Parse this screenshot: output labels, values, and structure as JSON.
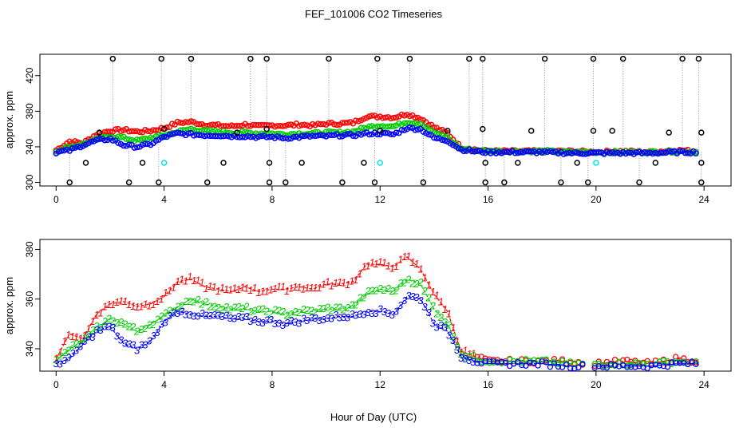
{
  "title": "FEF_101006  CO2 Timeseries",
  "xlabel": "Hour of Day (UTC)",
  "colors": {
    "series_1": "#ff0000",
    "series_2": "#00cc00",
    "series_3": "#0000ff",
    "outlier": "#000000",
    "cyan": "#00e5ee",
    "dotted_line": "#888888"
  },
  "chart_data": [
    {
      "type": "scatter",
      "panel": "top",
      "ylabel": "approx. ppm",
      "xlim": [
        -0.6,
        25
      ],
      "ylim": [
        296,
        444
      ],
      "xticks": [
        0,
        4,
        8,
        12,
        16,
        20,
        24
      ],
      "yticks": [
        300,
        340,
        380,
        420
      ],
      "outliers_high": [
        2.1,
        3.9,
        5.0,
        7.2,
        7.8,
        10.1,
        11.9,
        13.1,
        15.3,
        15.8,
        18.1,
        19.9,
        21.0,
        23.2,
        23.8
      ],
      "outliers_low": [
        0.5,
        2.7,
        3.8,
        5.6,
        7.9,
        8.5,
        10.6,
        11.8,
        13.6,
        15.9,
        16.6,
        18.7,
        19.7,
        21.6,
        23.9
      ],
      "outliers_mid": [
        [
          1.1,
          322
        ],
        [
          1.6,
          356
        ],
        [
          3.2,
          322
        ],
        [
          4.0,
          360
        ],
        [
          6.2,
          322
        ],
        [
          6.7,
          356
        ],
        [
          7.8,
          360
        ],
        [
          7.9,
          322
        ],
        [
          9.1,
          322
        ],
        [
          11.4,
          322
        ],
        [
          12.0,
          358
        ],
        [
          14.5,
          358
        ],
        [
          15.9,
          322
        ],
        [
          15.8,
          360
        ],
        [
          17.1,
          322
        ],
        [
          17.6,
          358
        ],
        [
          19.3,
          322
        ],
        [
          19.9,
          358
        ],
        [
          20.6,
          358
        ],
        [
          22.2,
          322
        ],
        [
          22.7,
          356
        ],
        [
          23.9,
          322
        ],
        [
          23.9,
          356
        ]
      ],
      "cyan_points": [
        [
          4.0,
          322
        ],
        [
          12.0,
          322
        ],
        [
          20.0,
          322
        ]
      ]
    },
    {
      "type": "scatter",
      "panel": "bottom",
      "ylabel": "approx. ppm",
      "xlim": [
        -0.6,
        25
      ],
      "ylim": [
        331,
        384
      ],
      "xticks": [
        0,
        4,
        8,
        12,
        16,
        20,
        24
      ],
      "yticks": [
        340,
        360,
        380
      ],
      "series": [
        {
          "marker": "1",
          "color": "#ff0000"
        },
        {
          "marker": "2",
          "color": "#00cc00"
        },
        {
          "marker": "3",
          "color": "#0000ff"
        }
      ],
      "x": [
        0.0,
        0.5,
        1.0,
        1.5,
        2.0,
        2.5,
        3.0,
        3.5,
        4.0,
        4.5,
        5.0,
        5.5,
        6.0,
        6.5,
        7.0,
        7.5,
        8.0,
        8.5,
        9.0,
        9.5,
        10.0,
        10.5,
        11.0,
        11.5,
        12.0,
        12.5,
        13.0,
        13.5,
        14.0,
        14.5,
        15.0,
        15.5,
        16.0,
        17.0,
        18.0,
        19.0,
        20.0,
        21.0,
        22.0,
        23.0,
        23.8
      ],
      "values_1": [
        336,
        346,
        344,
        354,
        358,
        359,
        357,
        358,
        361,
        367,
        368,
        365,
        364,
        363,
        365,
        363,
        364,
        364,
        365,
        364,
        366,
        366,
        367,
        374,
        374,
        373,
        377,
        372,
        362,
        355,
        339,
        337,
        335,
        335,
        335,
        335,
        334,
        335,
        334,
        336,
        335
      ],
      "values_2": [
        335,
        340,
        343,
        348,
        352,
        350,
        347,
        350,
        353,
        357,
        360,
        358,
        357,
        356,
        356,
        355,
        355,
        354,
        355,
        355,
        356,
        356,
        357,
        362,
        364,
        363,
        368,
        366,
        356,
        350,
        338,
        336,
        335,
        335,
        335,
        334,
        334,
        334,
        334,
        335,
        334
      ],
      "values_3": [
        334,
        336,
        342,
        347,
        349,
        342,
        340,
        343,
        351,
        355,
        354,
        353,
        353,
        352,
        352,
        351,
        351,
        350,
        351,
        352,
        352,
        353,
        353,
        355,
        355,
        354,
        361,
        360,
        350,
        347,
        337,
        335,
        334,
        334,
        334,
        333,
        333,
        333,
        333,
        334,
        334
      ]
    }
  ]
}
